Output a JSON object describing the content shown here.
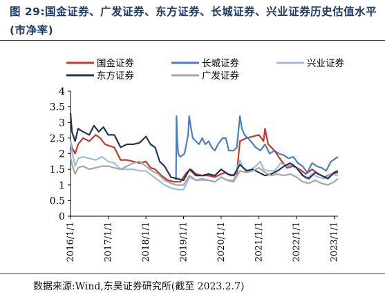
{
  "figure_title": "图 29:国金证券、广发证券、东方证券、长城证券、兴业证券历史估值水平(市净率)",
  "source_note": "数据来源:Wind,东吴证券研究所(截至 2023.2.7)",
  "colors": {
    "title": "#1e3a66",
    "国金证券": "#c0392b",
    "长城证券": "#4a7ebf",
    "兴业证券": "#9dbde0",
    "东方证券": "#1f3556",
    "广发证券": "#a6a6a6"
  },
  "chart_data": {
    "type": "line",
    "title": "",
    "xlabel": "",
    "ylabel": "",
    "ylim": [
      0,
      4
    ],
    "yticks": [
      "0",
      "0.5",
      "1",
      "1.5",
      "2",
      "2.5",
      "3",
      "3.5",
      "4"
    ],
    "xticks": [
      "2016/1/1",
      "2017/1/1",
      "2018/1/1",
      "2019/1/1",
      "2020/1/1",
      "2021/1/1",
      "2022/1/1",
      "2023/1/1"
    ],
    "xrange": [
      "2016-01-01",
      "2023-02-07"
    ],
    "grid": false,
    "legend": [
      "国金证券",
      "长城证券",
      "兴业证券",
      "东方证券",
      "广发证券"
    ],
    "legend_placement": "top",
    "series": [
      {
        "name": "国金证券",
        "points": [
          [
            "2016-01-01",
            2.4
          ],
          [
            "2016-01-15",
            2.2
          ],
          [
            "2016-02-15",
            2.0
          ],
          [
            "2016-03-15",
            2.3
          ],
          [
            "2016-05-01",
            2.5
          ],
          [
            "2016-07-01",
            2.4
          ],
          [
            "2016-09-01",
            2.6
          ],
          [
            "2016-10-15",
            2.5
          ],
          [
            "2016-12-01",
            2.3
          ],
          [
            "2017-03-01",
            2.2
          ],
          [
            "2017-05-01",
            1.8
          ],
          [
            "2017-07-01",
            1.8
          ],
          [
            "2017-09-01",
            1.75
          ],
          [
            "2017-11-01",
            1.7
          ],
          [
            "2018-01-01",
            1.75
          ],
          [
            "2018-02-15",
            1.55
          ],
          [
            "2018-04-01",
            1.5
          ],
          [
            "2018-06-01",
            1.3
          ],
          [
            "2018-08-01",
            1.15
          ],
          [
            "2018-10-01",
            1.1
          ],
          [
            "2018-12-01",
            1.1
          ],
          [
            "2019-02-01",
            1.4
          ],
          [
            "2019-03-15",
            1.5
          ],
          [
            "2019-05-01",
            1.35
          ],
          [
            "2019-07-01",
            1.3
          ],
          [
            "2019-09-01",
            1.3
          ],
          [
            "2019-11-01",
            1.25
          ],
          [
            "2020-01-01",
            1.35
          ],
          [
            "2020-02-15",
            1.4
          ],
          [
            "2020-04-01",
            1.3
          ],
          [
            "2020-06-01",
            1.35
          ],
          [
            "2020-07-01",
            2.4
          ],
          [
            "2020-09-01",
            2.5
          ],
          [
            "2020-11-01",
            2.55
          ],
          [
            "2021-01-01",
            2.6
          ],
          [
            "2021-02-15",
            2.4
          ],
          [
            "2021-03-01",
            2.8
          ],
          [
            "2021-04-01",
            2.3
          ],
          [
            "2021-06-01",
            2.1
          ],
          [
            "2021-08-01",
            1.8
          ],
          [
            "2021-10-01",
            1.55
          ],
          [
            "2021-12-01",
            1.6
          ],
          [
            "2022-02-01",
            1.5
          ],
          [
            "2022-04-01",
            1.35
          ],
          [
            "2022-06-01",
            1.5
          ],
          [
            "2022-08-01",
            1.35
          ],
          [
            "2022-10-01",
            1.25
          ],
          [
            "2022-12-01",
            1.35
          ],
          [
            "2023-02-07",
            1.4
          ]
        ]
      },
      {
        "name": "长城证券",
        "points": [
          [
            "2018-10-20",
            1.15
          ],
          [
            "2018-10-25",
            3.2
          ],
          [
            "2018-11-01",
            2.5
          ],
          [
            "2018-11-10",
            2.0
          ],
          [
            "2018-12-01",
            1.9
          ],
          [
            "2019-01-10",
            2.0
          ],
          [
            "2019-02-15",
            2.6
          ],
          [
            "2019-02-25",
            3.2
          ],
          [
            "2019-03-10",
            2.9
          ],
          [
            "2019-04-01",
            2.5
          ],
          [
            "2019-05-01",
            2.4
          ],
          [
            "2019-06-01",
            2.3
          ],
          [
            "2019-07-01",
            2.5
          ],
          [
            "2019-08-01",
            2.3
          ],
          [
            "2019-09-01",
            2.4
          ],
          [
            "2019-10-01",
            2.2
          ],
          [
            "2019-11-01",
            2.1
          ],
          [
            "2019-12-01",
            2.3
          ],
          [
            "2020-01-15",
            2.5
          ],
          [
            "2020-02-15",
            2.5
          ],
          [
            "2020-03-15",
            2.1
          ],
          [
            "2020-04-01",
            2.1
          ],
          [
            "2020-05-01",
            2.1
          ],
          [
            "2020-06-01",
            2.2
          ],
          [
            "2020-07-01",
            3.2
          ],
          [
            "2020-07-20",
            2.8
          ],
          [
            "2020-08-15",
            2.6
          ],
          [
            "2020-09-15",
            2.5
          ],
          [
            "2020-10-15",
            2.4
          ],
          [
            "2020-12-01",
            2.2
          ],
          [
            "2021-01-15",
            2.1
          ],
          [
            "2021-03-01",
            2.3
          ],
          [
            "2021-04-15",
            2.0
          ],
          [
            "2021-06-01",
            2.1
          ],
          [
            "2021-07-15",
            2.0
          ],
          [
            "2021-09-01",
            1.95
          ],
          [
            "2021-10-15",
            1.85
          ],
          [
            "2021-12-01",
            1.9
          ],
          [
            "2022-01-15",
            1.7
          ],
          [
            "2022-03-01",
            1.6
          ],
          [
            "2022-04-15",
            1.4
          ],
          [
            "2022-06-01",
            1.7
          ],
          [
            "2022-07-15",
            1.6
          ],
          [
            "2022-09-01",
            1.55
          ],
          [
            "2022-10-15",
            1.45
          ],
          [
            "2022-12-01",
            1.75
          ],
          [
            "2023-01-15",
            1.85
          ],
          [
            "2023-02-07",
            1.9
          ]
        ]
      },
      {
        "name": "兴业证券",
        "points": [
          [
            "2016-01-01",
            2.4
          ],
          [
            "2016-01-20",
            2.0
          ],
          [
            "2016-02-15",
            1.6
          ],
          [
            "2016-03-15",
            1.85
          ],
          [
            "2016-05-01",
            1.9
          ],
          [
            "2016-07-01",
            1.85
          ],
          [
            "2016-09-01",
            1.8
          ],
          [
            "2016-11-01",
            1.9
          ],
          [
            "2017-01-01",
            1.75
          ],
          [
            "2017-03-01",
            1.7
          ],
          [
            "2017-05-01",
            1.5
          ],
          [
            "2017-07-01",
            1.5
          ],
          [
            "2017-09-01",
            1.5
          ],
          [
            "2017-11-01",
            1.45
          ],
          [
            "2018-01-01",
            1.45
          ],
          [
            "2018-03-01",
            1.3
          ],
          [
            "2018-05-01",
            1.15
          ],
          [
            "2018-07-01",
            1.0
          ],
          [
            "2018-09-01",
            0.9
          ],
          [
            "2018-11-01",
            0.85
          ],
          [
            "2019-01-01",
            0.85
          ],
          [
            "2019-03-01",
            1.25
          ],
          [
            "2019-05-01",
            1.15
          ],
          [
            "2019-07-01",
            1.15
          ],
          [
            "2019-09-01",
            1.15
          ],
          [
            "2019-11-01",
            1.1
          ],
          [
            "2020-01-01",
            1.25
          ],
          [
            "2020-03-01",
            1.15
          ],
          [
            "2020-05-01",
            1.15
          ],
          [
            "2020-07-01",
            1.8
          ],
          [
            "2020-08-01",
            1.55
          ],
          [
            "2020-10-01",
            1.45
          ],
          [
            "2020-12-01",
            1.6
          ],
          [
            "2021-01-15",
            1.75
          ],
          [
            "2021-02-15",
            1.5
          ],
          [
            "2021-04-01",
            1.45
          ],
          [
            "2021-06-01",
            1.45
          ],
          [
            "2021-08-01",
            1.7
          ],
          [
            "2021-10-01",
            1.6
          ],
          [
            "2021-12-01",
            1.65
          ],
          [
            "2022-02-01",
            1.45
          ],
          [
            "2022-04-01",
            1.2
          ],
          [
            "2022-06-01",
            1.35
          ],
          [
            "2022-08-01",
            1.25
          ],
          [
            "2022-10-01",
            1.2
          ],
          [
            "2022-12-01",
            1.35
          ],
          [
            "2023-02-07",
            1.3
          ]
        ]
      },
      {
        "name": "东方证券",
        "points": [
          [
            "2016-01-01",
            3.3
          ],
          [
            "2016-01-15",
            2.7
          ],
          [
            "2016-02-15",
            2.4
          ],
          [
            "2016-03-15",
            2.8
          ],
          [
            "2016-05-01",
            2.7
          ],
          [
            "2016-07-01",
            2.6
          ],
          [
            "2016-08-15",
            2.9
          ],
          [
            "2016-10-01",
            2.7
          ],
          [
            "2016-11-15",
            2.85
          ],
          [
            "2017-01-01",
            2.6
          ],
          [
            "2017-03-01",
            2.6
          ],
          [
            "2017-05-01",
            2.2
          ],
          [
            "2017-07-01",
            2.3
          ],
          [
            "2017-09-01",
            2.3
          ],
          [
            "2017-11-01",
            2.35
          ],
          [
            "2018-01-01",
            2.55
          ],
          [
            "2018-02-15",
            2.3
          ],
          [
            "2018-04-01",
            2.2
          ],
          [
            "2018-05-15",
            1.75
          ],
          [
            "2018-07-01",
            1.6
          ],
          [
            "2018-09-01",
            1.25
          ],
          [
            "2018-11-01",
            1.2
          ],
          [
            "2019-01-01",
            1.15
          ],
          [
            "2019-03-01",
            1.5
          ],
          [
            "2019-05-01",
            1.3
          ],
          [
            "2019-07-01",
            1.3
          ],
          [
            "2019-09-01",
            1.35
          ],
          [
            "2019-11-01",
            1.3
          ],
          [
            "2020-01-01",
            1.5
          ],
          [
            "2020-03-01",
            1.35
          ],
          [
            "2020-05-01",
            1.3
          ],
          [
            "2020-07-01",
            1.65
          ],
          [
            "2020-09-01",
            1.45
          ],
          [
            "2020-11-01",
            1.5
          ],
          [
            "2021-01-01",
            1.4
          ],
          [
            "2021-03-01",
            1.3
          ],
          [
            "2021-05-01",
            1.35
          ],
          [
            "2021-07-01",
            1.45
          ],
          [
            "2021-09-01",
            1.6
          ],
          [
            "2021-11-01",
            1.7
          ],
          [
            "2022-01-01",
            1.55
          ],
          [
            "2022-03-01",
            1.3
          ],
          [
            "2022-05-01",
            1.2
          ],
          [
            "2022-07-01",
            1.4
          ],
          [
            "2022-09-01",
            1.3
          ],
          [
            "2022-11-01",
            1.2
          ],
          [
            "2023-01-01",
            1.4
          ],
          [
            "2023-02-07",
            1.45
          ]
        ]
      },
      {
        "name": "广发证券",
        "points": [
          [
            "2016-01-01",
            1.9
          ],
          [
            "2016-01-20",
            1.6
          ],
          [
            "2016-02-15",
            1.35
          ],
          [
            "2016-03-15",
            1.55
          ],
          [
            "2016-05-01",
            1.6
          ],
          [
            "2016-07-01",
            1.5
          ],
          [
            "2016-09-01",
            1.55
          ],
          [
            "2016-11-01",
            1.6
          ],
          [
            "2017-01-01",
            1.6
          ],
          [
            "2017-03-01",
            1.55
          ],
          [
            "2017-05-01",
            1.5
          ],
          [
            "2017-07-01",
            1.6
          ],
          [
            "2017-09-01",
            1.7
          ],
          [
            "2017-11-01",
            1.75
          ],
          [
            "2018-01-01",
            1.6
          ],
          [
            "2018-03-01",
            1.45
          ],
          [
            "2018-05-01",
            1.35
          ],
          [
            "2018-07-01",
            1.15
          ],
          [
            "2018-09-01",
            1.05
          ],
          [
            "2018-11-01",
            1.0
          ],
          [
            "2019-01-01",
            1.0
          ],
          [
            "2019-03-01",
            1.3
          ],
          [
            "2019-05-01",
            1.15
          ],
          [
            "2019-07-01",
            1.2
          ],
          [
            "2019-09-01",
            1.15
          ],
          [
            "2019-11-01",
            1.1
          ],
          [
            "2020-01-01",
            1.25
          ],
          [
            "2020-03-01",
            1.15
          ],
          [
            "2020-05-01",
            1.1
          ],
          [
            "2020-07-01",
            1.45
          ],
          [
            "2020-09-01",
            1.4
          ],
          [
            "2020-11-01",
            1.45
          ],
          [
            "2021-01-01",
            1.55
          ],
          [
            "2021-03-01",
            1.4
          ],
          [
            "2021-05-01",
            1.3
          ],
          [
            "2021-07-01",
            1.35
          ],
          [
            "2021-09-01",
            1.3
          ],
          [
            "2021-11-01",
            1.35
          ],
          [
            "2022-01-01",
            1.25
          ],
          [
            "2022-03-01",
            1.1
          ],
          [
            "2022-05-01",
            1.05
          ],
          [
            "2022-07-01",
            1.15
          ],
          [
            "2022-09-01",
            1.05
          ],
          [
            "2022-11-01",
            1.0
          ],
          [
            "2023-01-01",
            1.1
          ],
          [
            "2023-02-07",
            1.2
          ]
        ]
      }
    ]
  }
}
